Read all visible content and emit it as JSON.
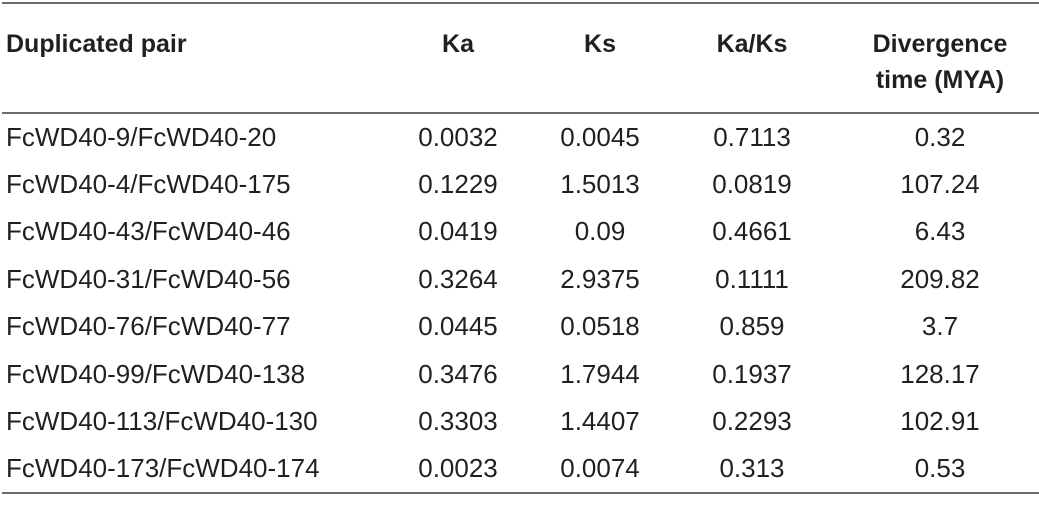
{
  "table": {
    "headers": {
      "pair": "Duplicated pair",
      "ka": "Ka",
      "ks": "Ks",
      "ka_ks": "Ka/Ks",
      "divergence_line1": "Divergence",
      "divergence_line2": "time (MYA)"
    },
    "rows": [
      {
        "pair": "FcWD40-9/FcWD40-20",
        "ka": "0.0032",
        "ks": "0.0045",
        "ka_ks": "0.7113",
        "divergence": "0.32"
      },
      {
        "pair": "FcWD40-4/FcWD40-175",
        "ka": "0.1229",
        "ks": "1.5013",
        "ka_ks": "0.0819",
        "divergence": "107.24"
      },
      {
        "pair": "FcWD40-43/FcWD40-46",
        "ka": "0.0419",
        "ks": "0.09",
        "ka_ks": "0.4661",
        "divergence": "6.43"
      },
      {
        "pair": "FcWD40-31/FcWD40-56",
        "ka": "0.3264",
        "ks": "2.9375",
        "ka_ks": "0.1111",
        "divergence": "209.82"
      },
      {
        "pair": "FcWD40-76/FcWD40-77",
        "ka": "0.0445",
        "ks": "0.0518",
        "ka_ks": "0.859",
        "divergence": "3.7"
      },
      {
        "pair": "FcWD40-99/FcWD40-138",
        "ka": "0.3476",
        "ks": "1.7944",
        "ka_ks": "0.1937",
        "divergence": "128.17"
      },
      {
        "pair": "FcWD40-113/FcWD40-130",
        "ka": "0.3303",
        "ks": "1.4407",
        "ka_ks": "0.2293",
        "divergence": "102.91"
      },
      {
        "pair": "FcWD40-173/FcWD40-174",
        "ka": "0.0023",
        "ks": "0.0074",
        "ka_ks": "0.313",
        "divergence": "0.53"
      }
    ]
  }
}
